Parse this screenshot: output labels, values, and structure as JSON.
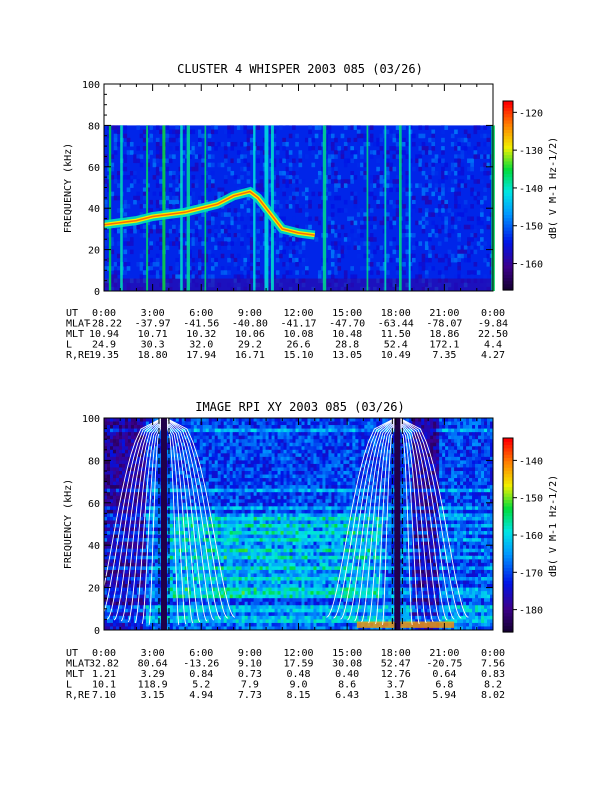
{
  "chart_data": [
    {
      "type": "heatmap",
      "title": "CLUSTER 4 WHISPER 2003 085 (03/26)",
      "ylabel": "FREQUENCY (kHz)",
      "ylim": [
        0,
        100
      ],
      "yticks": [
        "0",
        "20",
        "40",
        "60",
        "80",
        "100"
      ],
      "data_ceiling_khz": 80,
      "colorbar": {
        "label": "dB( V M-1 Hz-1/2)",
        "range": [
          -167,
          -117
        ],
        "ticks": [
          -120,
          -130,
          -140,
          -150,
          -160
        ]
      },
      "time_axis": {
        "name": "UT",
        "labels": [
          "0:00",
          "3:00",
          "6:00",
          "9:00",
          "12:00",
          "15:00",
          "18:00",
          "21:00",
          "0:00"
        ],
        "hours": [
          0,
          3,
          6,
          9,
          12,
          15,
          18,
          21,
          24
        ]
      },
      "ephemeris": [
        {
          "name": "MLAT",
          "values": [
            "-28.22",
            "-37.97",
            "-41.56",
            "-40.80",
            "-41.17",
            "-47.70",
            "-63.44",
            "-78.07",
            "-9.84"
          ]
        },
        {
          "name": "MLT",
          "values": [
            "10.94",
            "10.71",
            "10.32",
            "10.06",
            "10.08",
            "10.48",
            "11.50",
            "18.86",
            "22.50"
          ]
        },
        {
          "name": "L",
          "values": [
            "24.9",
            "30.3",
            "32.0",
            "29.2",
            "26.6",
            "28.8",
            "52.4",
            "172.1",
            "4.4"
          ]
        },
        {
          "name": "R,RE",
          "values": [
            "19.35",
            "18.80",
            "17.94",
            "16.71",
            "15.10",
            "13.05",
            "10.49",
            "7.35",
            "4.27"
          ]
        }
      ],
      "features": {
        "plasma_line_hours": [
          0,
          1,
          2,
          3,
          4,
          5,
          6,
          7,
          8,
          9,
          9.5,
          10,
          11,
          12,
          13
        ],
        "plasma_line_khz": [
          32,
          33,
          34,
          36,
          37,
          38,
          40,
          42,
          46,
          48,
          45,
          40,
          30,
          28,
          27
        ],
        "bursts_hours": [
          0.3,
          1.0,
          2.6,
          3.6,
          4.7,
          5.1,
          6.2,
          9.2,
          9.9,
          10.3,
          13.5,
          16.2,
          17.3,
          18.2,
          18.8,
          23.9
        ]
      }
    },
    {
      "type": "heatmap",
      "title": "IMAGE RPI XY 2003 085 (03/26)",
      "ylabel": "FREQUENCY (kHz)",
      "ylim": [
        0,
        100
      ],
      "yticks": [
        "0",
        "20",
        "40",
        "60",
        "80",
        "100"
      ],
      "colorbar": {
        "label": "dB( V M-1 Hz-1/2)",
        "range": [
          -186,
          -134
        ],
        "ticks": [
          -140,
          -150,
          -160,
          -170,
          -180
        ]
      },
      "time_axis": {
        "name": "UT",
        "labels": [
          "0:00",
          "3:00",
          "6:00",
          "9:00",
          "12:00",
          "15:00",
          "18:00",
          "21:00",
          "0:00"
        ],
        "hours": [
          0,
          3,
          6,
          9,
          12,
          15,
          18,
          21,
          24
        ]
      },
      "ephemeris": [
        {
          "name": "MLAT",
          "values": [
            "32.82",
            "80.64",
            "-13.26",
            "9.10",
            "17.59",
            "30.08",
            "52.47",
            "-20.75",
            "7.56"
          ]
        },
        {
          "name": "MLT",
          "values": [
            "1.21",
            "3.29",
            "0.84",
            "0.73",
            "0.48",
            "0.40",
            "12.76",
            "0.64",
            "0.83"
          ]
        },
        {
          "name": "L",
          "values": [
            "10.1",
            "118.9",
            "5.2",
            "7.9",
            "9.0",
            "8.6",
            "3.7",
            "6.8",
            "8.2"
          ]
        },
        {
          "name": "R,RE",
          "values": [
            "7.10",
            "3.15",
            "4.94",
            "7.73",
            "8.15",
            "6.43",
            "1.38",
            "5.94",
            "8.02"
          ]
        }
      ],
      "features": {
        "perigee_hours": [
          3.7,
          18.1
        ],
        "gyro_curve_count": 9
      }
    }
  ]
}
